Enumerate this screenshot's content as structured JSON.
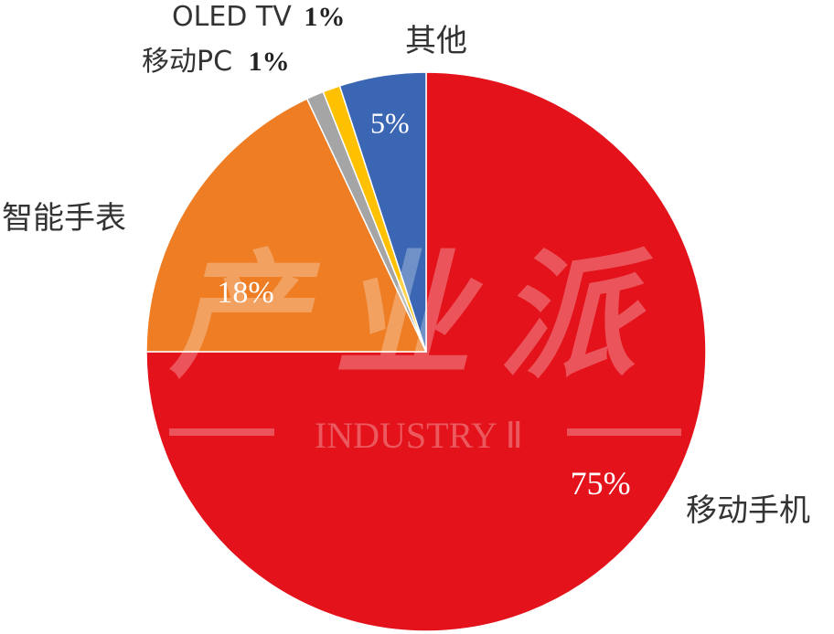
{
  "chart_data": {
    "type": "pie",
    "start_angle_deg": 0,
    "direction": "clockwise",
    "slices": [
      {
        "label": "移动手机",
        "value": 75,
        "value_label": "75%",
        "color": "#E3121B"
      },
      {
        "label": "智能手表",
        "value": 18,
        "value_label": "18%",
        "color": "#EE7D23"
      },
      {
        "label": "移动PC",
        "value": 1,
        "value_label": "1%",
        "color": "#A5A5A5"
      },
      {
        "label": "OLED TV",
        "value": 1,
        "value_label": "1%",
        "color": "#FFC000"
      },
      {
        "label": "其他",
        "value": 5,
        "value_label": "5%",
        "color": "#3A66B3"
      }
    ]
  },
  "watermark": {
    "brand": "产业派",
    "text": "INDUSTRY Ⅱ"
  }
}
